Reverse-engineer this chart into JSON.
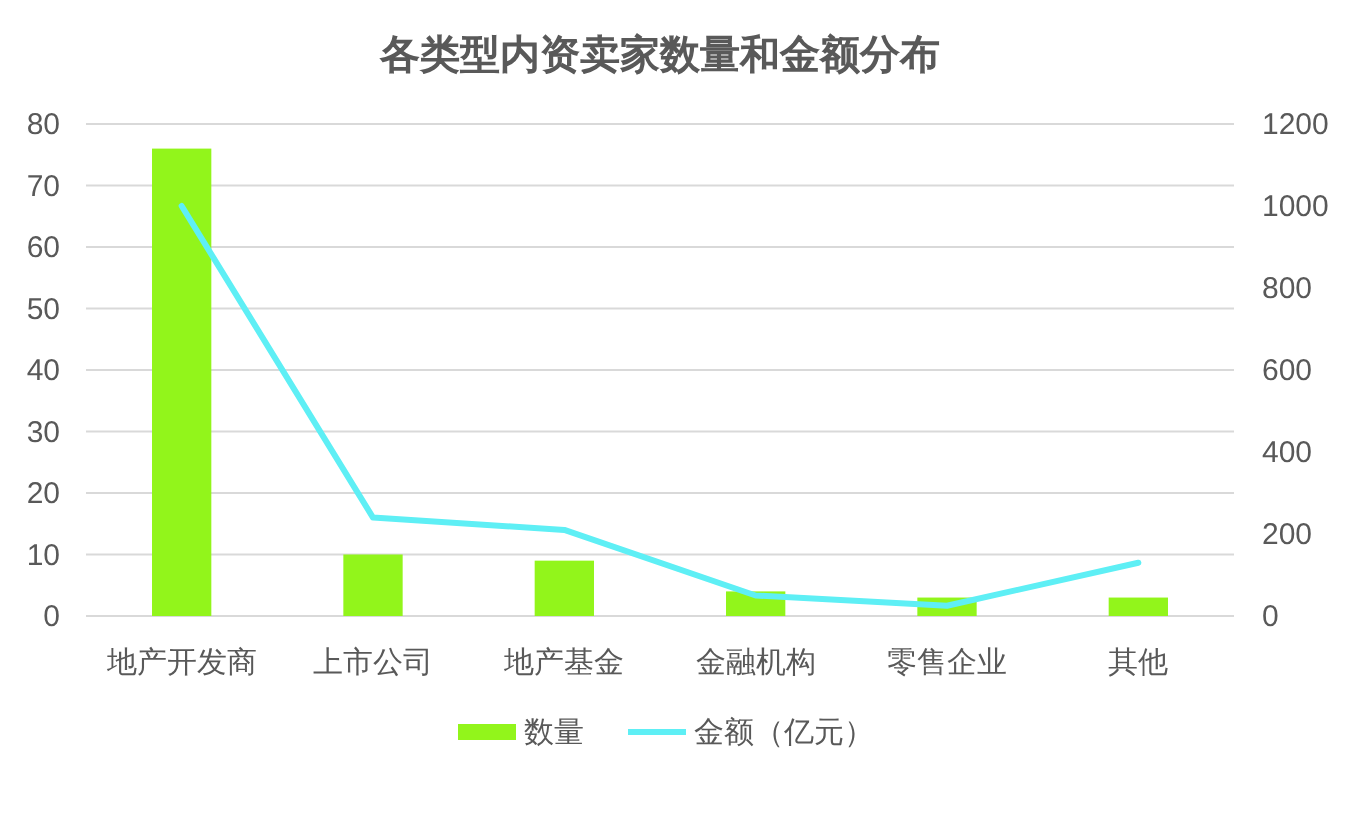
{
  "chart_data": {
    "type": "bar",
    "title": "各类型内资卖家数量和金额分布",
    "categories": [
      "地产开发商",
      "上市公司",
      "地产基金",
      "金融机构",
      "零售企业",
      "其他"
    ],
    "series": [
      {
        "name": "数量",
        "color": "#92f51b",
        "values": [
          76,
          10,
          9,
          4,
          3,
          3
        ]
      },
      {
        "name": "金额（亿元）",
        "type": "line",
        "axis": "y2",
        "color": "#5eeff5",
        "values": [
          1000,
          240,
          210,
          50,
          25,
          130
        ]
      }
    ],
    "ylim": [
      0,
      80
    ],
    "yticks": [
      0,
      10,
      20,
      30,
      40,
      50,
      60,
      70,
      80
    ],
    "y2lim": [
      0,
      1200
    ],
    "y2ticks": [
      0,
      200,
      400,
      600,
      800,
      1000,
      1200
    ],
    "grid": "y",
    "legend": "bottom"
  }
}
